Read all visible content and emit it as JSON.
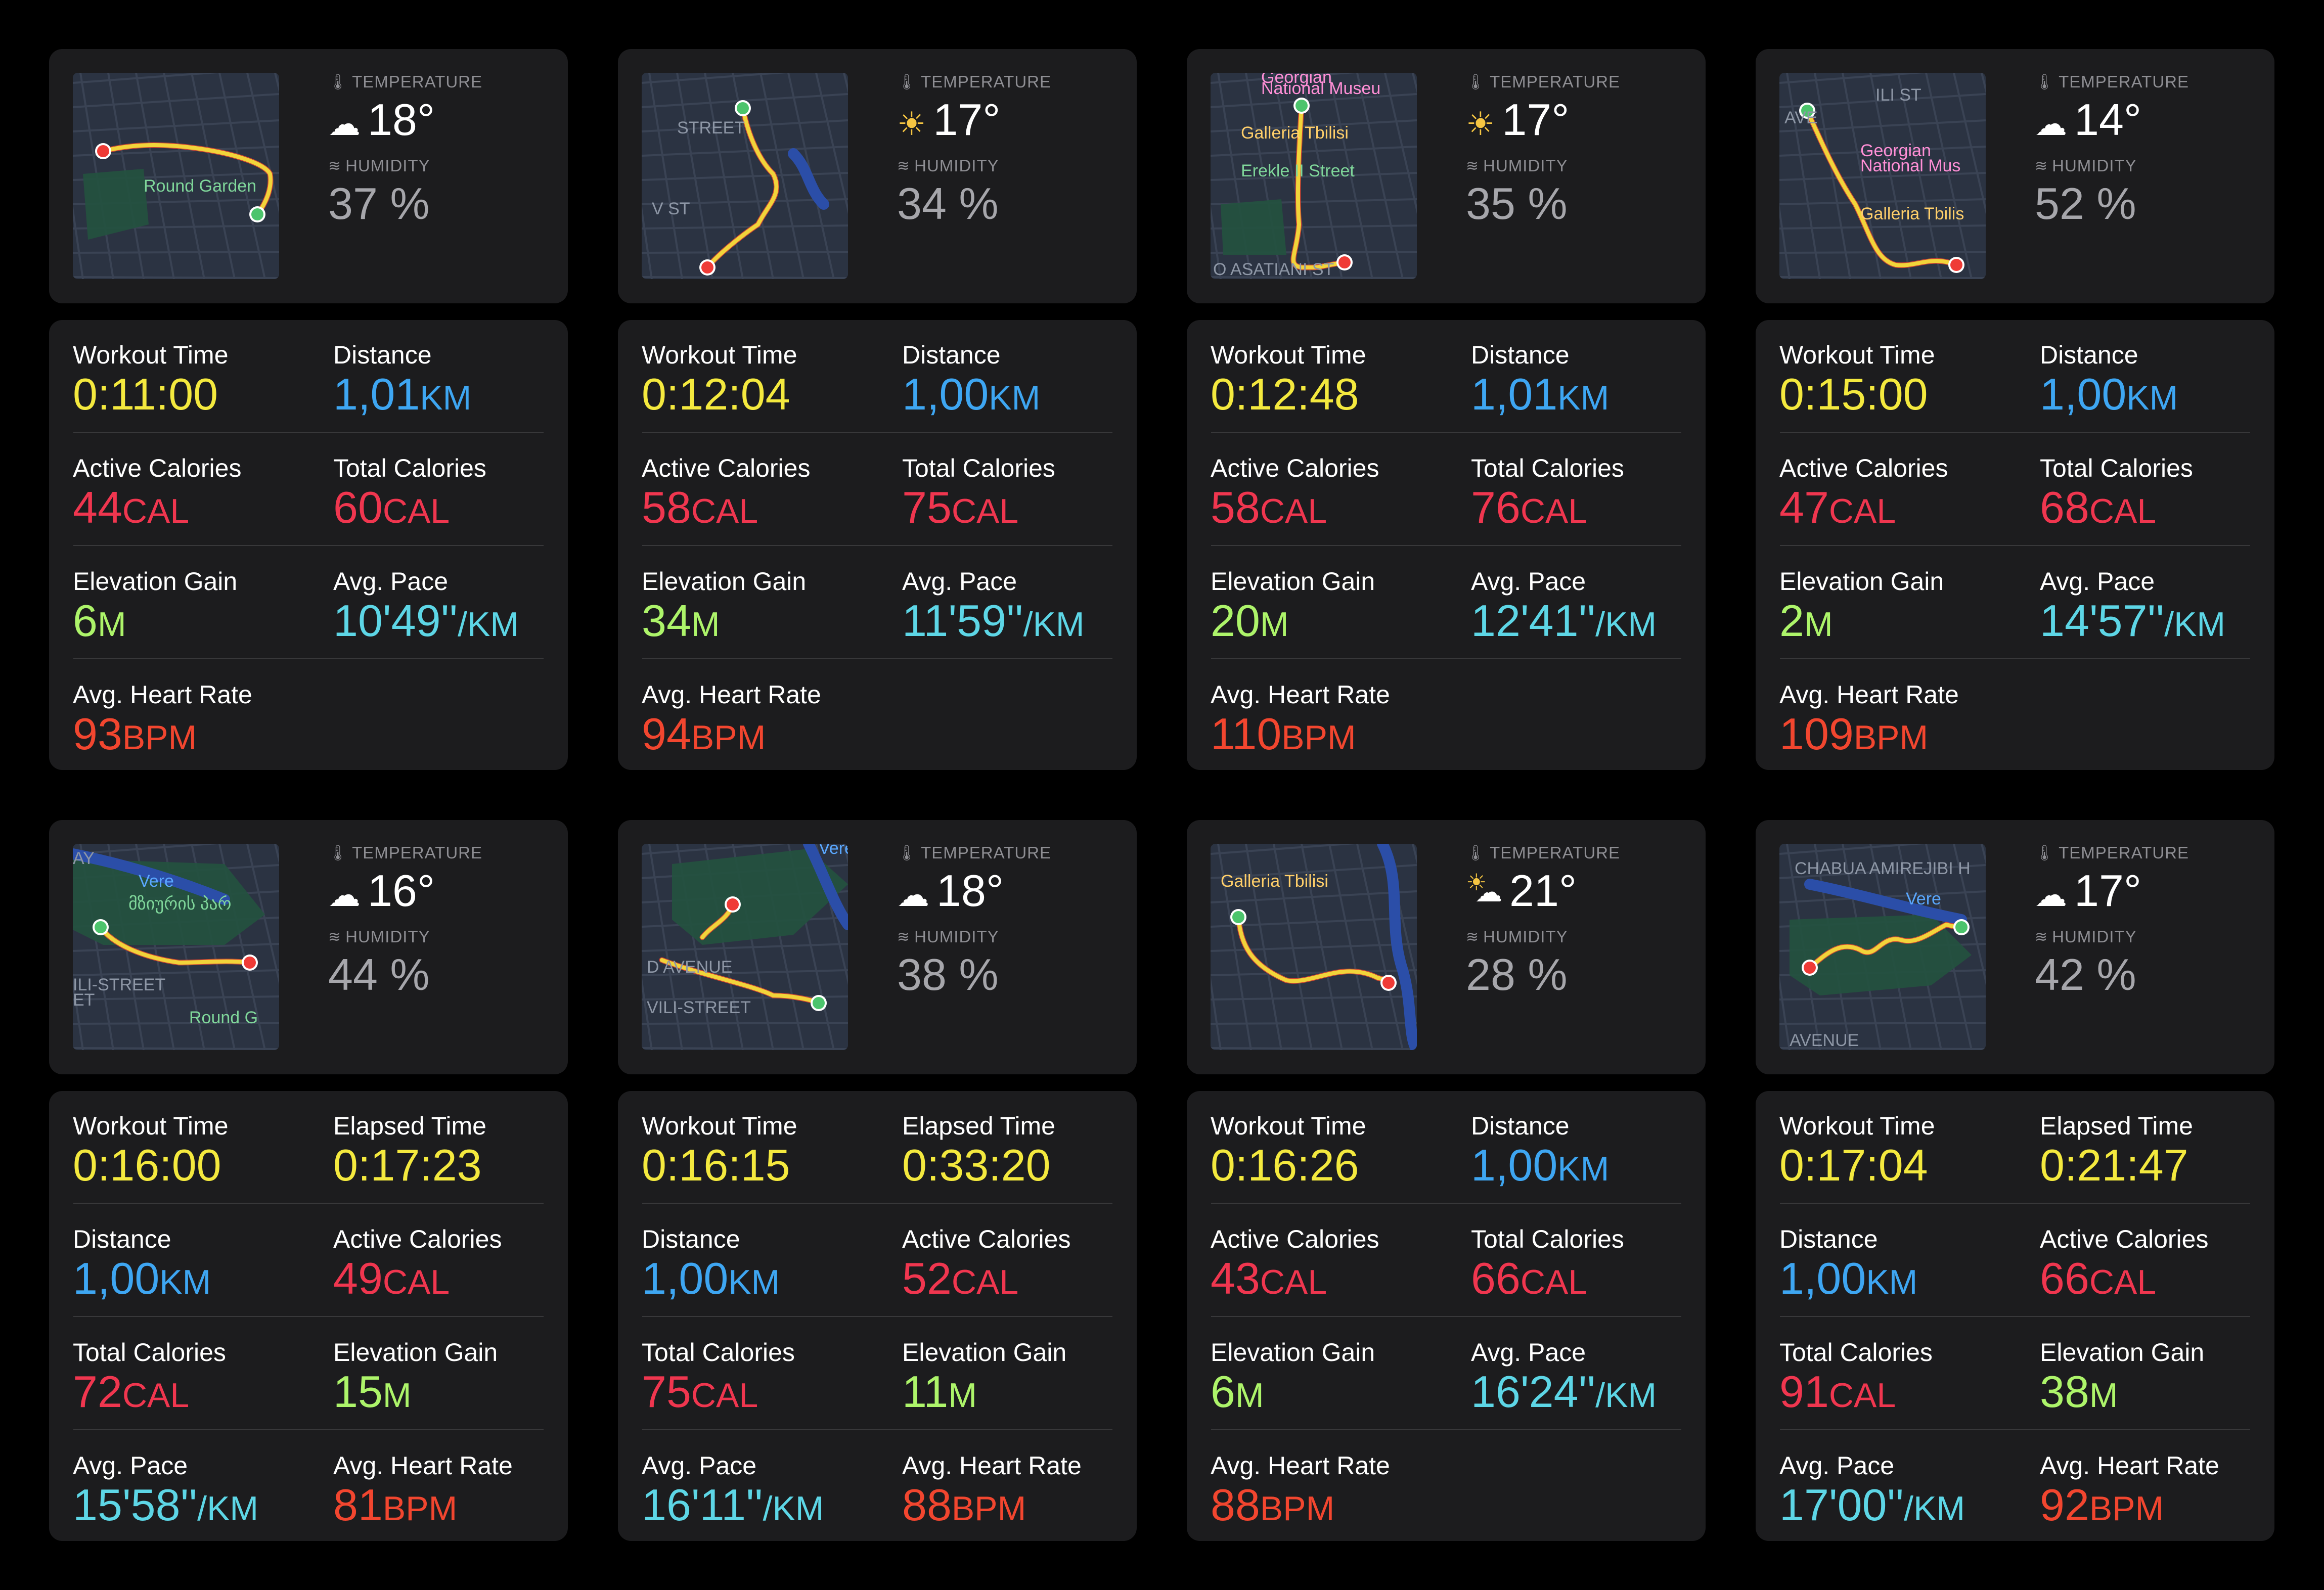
{
  "labels": {
    "temperature": "TEMPERATURE",
    "humidity": "HUMIDITY"
  },
  "colors": {
    "time": "#f4e93e",
    "distance": "#3ea6f2",
    "calories": "#f0364f",
    "elevation": "#adf46a",
    "pace": "#5dd6e6",
    "heart_rate": "#f2462f",
    "card_bg": "#1c1c1e"
  },
  "cards": [
    {
      "weather_icon": "cloud-icon",
      "temperature": "18°",
      "humidity": "37 %",
      "map_labels": [
        "Round Garden"
      ],
      "metrics": [
        {
          "label": "Workout Time",
          "value": "0:11:00",
          "unit": "",
          "kind": "yellow"
        },
        {
          "label": "Distance",
          "value": "1,01",
          "unit": "KM",
          "kind": "blue"
        },
        {
          "label": "Active Calories",
          "value": "44",
          "unit": "CAL",
          "kind": "red"
        },
        {
          "label": "Total Calories",
          "value": "60",
          "unit": "CAL",
          "kind": "red"
        },
        {
          "label": "Elevation Gain",
          "value": "6",
          "unit": "M",
          "kind": "green"
        },
        {
          "label": "Avg. Pace",
          "value": "10'49''",
          "unit": "/KM",
          "kind": "cyan"
        },
        {
          "label": "Avg. Heart Rate",
          "value": "93",
          "unit": "BPM",
          "kind": "hr"
        }
      ]
    },
    {
      "weather_icon": "sun-icon",
      "temperature": "17°",
      "humidity": "34 %",
      "map_labels": [
        "STREET",
        "V ST"
      ],
      "metrics": [
        {
          "label": "Workout Time",
          "value": "0:12:04",
          "unit": "",
          "kind": "yellow"
        },
        {
          "label": "Distance",
          "value": "1,00",
          "unit": "KM",
          "kind": "blue"
        },
        {
          "label": "Active Calories",
          "value": "58",
          "unit": "CAL",
          "kind": "red"
        },
        {
          "label": "Total Calories",
          "value": "75",
          "unit": "CAL",
          "kind": "red"
        },
        {
          "label": "Elevation Gain",
          "value": "34",
          "unit": "M",
          "kind": "green"
        },
        {
          "label": "Avg. Pace",
          "value": "11'59''",
          "unit": "/KM",
          "kind": "cyan"
        },
        {
          "label": "Avg. Heart Rate",
          "value": "94",
          "unit": "BPM",
          "kind": "hr"
        }
      ]
    },
    {
      "weather_icon": "sun-icon",
      "temperature": "17°",
      "humidity": "35 %",
      "map_labels": [
        "Georgian",
        "National Museu",
        "Galleria Tbilisi",
        "Erekle II Street",
        "O ASATIANI ST"
      ],
      "metrics": [
        {
          "label": "Workout Time",
          "value": "0:12:48",
          "unit": "",
          "kind": "yellow"
        },
        {
          "label": "Distance",
          "value": "1,01",
          "unit": "KM",
          "kind": "blue"
        },
        {
          "label": "Active Calories",
          "value": "58",
          "unit": "CAL",
          "kind": "red"
        },
        {
          "label": "Total Calories",
          "value": "76",
          "unit": "CAL",
          "kind": "red"
        },
        {
          "label": "Elevation Gain",
          "value": "20",
          "unit": "M",
          "kind": "green"
        },
        {
          "label": "Avg. Pace",
          "value": "12'41''",
          "unit": "/KM",
          "kind": "cyan"
        },
        {
          "label": "Avg. Heart Rate",
          "value": "110",
          "unit": "BPM",
          "kind": "hr"
        }
      ]
    },
    {
      "weather_icon": "cloud-icon",
      "temperature": "14°",
      "humidity": "52 %",
      "map_labels": [
        "AVE",
        "ILI ST",
        "Georgian",
        "National Mus",
        "Galleria Tbilis"
      ],
      "metrics": [
        {
          "label": "Workout Time",
          "value": "0:15:00",
          "unit": "",
          "kind": "yellow"
        },
        {
          "label": "Distance",
          "value": "1,00",
          "unit": "KM",
          "kind": "blue"
        },
        {
          "label": "Active Calories",
          "value": "47",
          "unit": "CAL",
          "kind": "red"
        },
        {
          "label": "Total Calories",
          "value": "68",
          "unit": "CAL",
          "kind": "red"
        },
        {
          "label": "Elevation Gain",
          "value": "2",
          "unit": "M",
          "kind": "green"
        },
        {
          "label": "Avg. Pace",
          "value": "14'57''",
          "unit": "/KM",
          "kind": "cyan"
        },
        {
          "label": "Avg. Heart Rate",
          "value": "109",
          "unit": "BPM",
          "kind": "hr"
        }
      ]
    },
    {
      "weather_icon": "cloud-icon",
      "temperature": "16°",
      "humidity": "44 %",
      "map_labels": [
        "AY",
        "Vere",
        "მზიურის პარ",
        "ILI-STREET",
        "ET",
        "Round G"
      ],
      "metrics": [
        {
          "label": "Workout Time",
          "value": "0:16:00",
          "unit": "",
          "kind": "yellow"
        },
        {
          "label": "Elapsed Time",
          "value": "0:17:23",
          "unit": "",
          "kind": "yellow"
        },
        {
          "label": "Distance",
          "value": "1,00",
          "unit": "KM",
          "kind": "blue"
        },
        {
          "label": "Active Calories",
          "value": "49",
          "unit": "CAL",
          "kind": "red"
        },
        {
          "label": "Total Calories",
          "value": "72",
          "unit": "CAL",
          "kind": "red"
        },
        {
          "label": "Elevation Gain",
          "value": "15",
          "unit": "M",
          "kind": "green"
        },
        {
          "label": "Avg. Pace",
          "value": "15'58''",
          "unit": "/KM",
          "kind": "cyan"
        },
        {
          "label": "Avg. Heart Rate",
          "value": "81",
          "unit": "BPM",
          "kind": "hr"
        }
      ]
    },
    {
      "weather_icon": "cloud-icon",
      "temperature": "18°",
      "humidity": "38 %",
      "map_labels": [
        "Vere",
        "D AVENUE",
        "VILI-STREET"
      ],
      "metrics": [
        {
          "label": "Workout Time",
          "value": "0:16:15",
          "unit": "",
          "kind": "yellow"
        },
        {
          "label": "Elapsed Time",
          "value": "0:33:20",
          "unit": "",
          "kind": "yellow"
        },
        {
          "label": "Distance",
          "value": "1,00",
          "unit": "KM",
          "kind": "blue"
        },
        {
          "label": "Active Calories",
          "value": "52",
          "unit": "CAL",
          "kind": "red"
        },
        {
          "label": "Total Calories",
          "value": "75",
          "unit": "CAL",
          "kind": "red"
        },
        {
          "label": "Elevation Gain",
          "value": "11",
          "unit": "M",
          "kind": "green"
        },
        {
          "label": "Avg. Pace",
          "value": "16'11''",
          "unit": "/KM",
          "kind": "cyan"
        },
        {
          "label": "Avg. Heart Rate",
          "value": "88",
          "unit": "BPM",
          "kind": "hr"
        }
      ]
    },
    {
      "weather_icon": "sun-cloud-icon",
      "temperature": "21°",
      "humidity": "28 %",
      "map_labels": [
        "Galleria Tbilisi"
      ],
      "metrics": [
        {
          "label": "Workout Time",
          "value": "0:16:26",
          "unit": "",
          "kind": "yellow"
        },
        {
          "label": "Distance",
          "value": "1,00",
          "unit": "KM",
          "kind": "blue"
        },
        {
          "label": "Active Calories",
          "value": "43",
          "unit": "CAL",
          "kind": "red"
        },
        {
          "label": "Total Calories",
          "value": "66",
          "unit": "CAL",
          "kind": "red"
        },
        {
          "label": "Elevation Gain",
          "value": "6",
          "unit": "M",
          "kind": "green"
        },
        {
          "label": "Avg. Pace",
          "value": "16'24''",
          "unit": "/KM",
          "kind": "cyan"
        },
        {
          "label": "Avg. Heart Rate",
          "value": "88",
          "unit": "BPM",
          "kind": "hr"
        }
      ]
    },
    {
      "weather_icon": "cloud-icon",
      "temperature": "17°",
      "humidity": "42 %",
      "map_labels": [
        "CHABUA AMIREJIBI H",
        "Vere",
        "AVENUE"
      ],
      "metrics": [
        {
          "label": "Workout Time",
          "value": "0:17:04",
          "unit": "",
          "kind": "yellow"
        },
        {
          "label": "Elapsed Time",
          "value": "0:21:47",
          "unit": "",
          "kind": "yellow"
        },
        {
          "label": "Distance",
          "value": "1,00",
          "unit": "KM",
          "kind": "blue"
        },
        {
          "label": "Active Calories",
          "value": "66",
          "unit": "CAL",
          "kind": "red"
        },
        {
          "label": "Total Calories",
          "value": "91",
          "unit": "CAL",
          "kind": "red"
        },
        {
          "label": "Elevation Gain",
          "value": "38",
          "unit": "M",
          "kind": "green"
        },
        {
          "label": "Avg. Pace",
          "value": "17'00''",
          "unit": "/KM",
          "kind": "cyan"
        },
        {
          "label": "Avg. Heart Rate",
          "value": "92",
          "unit": "BPM",
          "kind": "hr"
        }
      ]
    }
  ]
}
